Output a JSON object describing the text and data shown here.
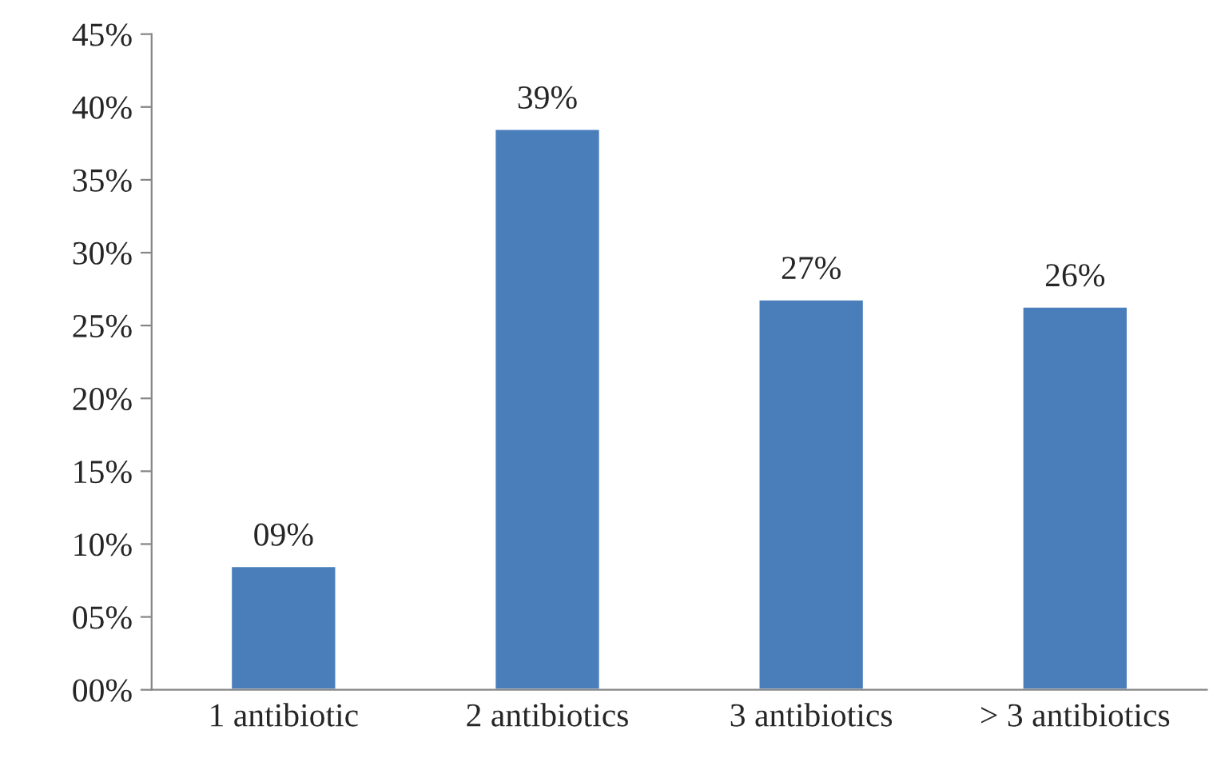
{
  "chart_data": {
    "type": "bar",
    "categories": [
      "1 antibiotic",
      "2 antibiotics",
      "3 antibiotics",
      "> 3 antibiotics"
    ],
    "values": [
      8.5,
      38.5,
      26.8,
      26.3
    ],
    "value_labels": [
      "09%",
      "39%",
      "27%",
      "26%"
    ],
    "color": "#4a7ebb",
    "ylim": [
      0,
      45
    ],
    "yticks": [
      {
        "value": 0,
        "label": "00%"
      },
      {
        "value": 5,
        "label": "05%"
      },
      {
        "value": 10,
        "label": "10%"
      },
      {
        "value": 15,
        "label": "15%"
      },
      {
        "value": 20,
        "label": "20%"
      },
      {
        "value": 25,
        "label": "25%"
      },
      {
        "value": 30,
        "label": "30%"
      },
      {
        "value": 35,
        "label": "35%"
      },
      {
        "value": 40,
        "label": "40%"
      },
      {
        "value": 45,
        "label": "45%"
      }
    ],
    "grid": false,
    "legend": false
  }
}
